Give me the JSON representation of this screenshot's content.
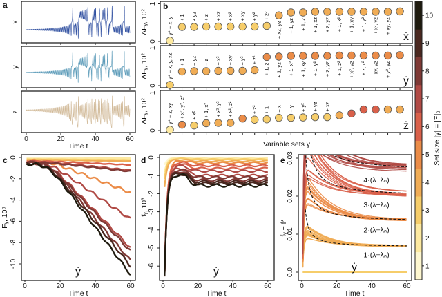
{
  "colors": {
    "set_size_scale": [
      "#fef7d0",
      "#fde9a0",
      "#f6cd6a",
      "#f0ac55",
      "#eb8c48",
      "#d9604a",
      "#b04a45",
      "#7e3935",
      "#4a2820",
      "#1e1a0e"
    ],
    "x_series": "#2f4fa0",
    "y_series": "#5a9ab8",
    "z_series": "#d2bb9a"
  },
  "chart_data": [
    {
      "panel": "a",
      "type": "line",
      "rows": [
        {
          "ylabel": "x"
        },
        {
          "ylabel": "y"
        },
        {
          "ylabel": "z"
        }
      ],
      "xlabel": "Time t",
      "xticks": [
        "0",
        "20",
        "40",
        "60"
      ],
      "xlim": [
        0,
        60
      ]
    },
    {
      "panel": "b",
      "type": "scatter",
      "ylabel": "ΔFᵧ, 10²",
      "yticks": [
        "0",
        "1"
      ],
      "ylim": [
        0,
        1
      ],
      "xlabel": "Variable sets γ",
      "rows": [
        {
          "target": "ẋ",
          "points": [
            {
              "label": "γ* = x, y",
              "set_size": 2,
              "value": 0.02
            },
            {
              "label": "+ 1",
              "set_size": 3,
              "value": 0.4
            },
            {
              "label": "+ yz",
              "set_size": 3,
              "value": 0.4
            },
            {
              "label": "+ z",
              "set_size": 3,
              "value": 0.41
            },
            {
              "label": "+ xz",
              "set_size": 3,
              "value": 0.41
            },
            {
              "label": "+ x²",
              "set_size": 3,
              "value": 0.41
            },
            {
              "label": "+ xy",
              "set_size": 3,
              "value": 0.41
            },
            {
              "label": "+ y²",
              "set_size": 3,
              "value": 0.41
            },
            {
              "label": "+ z²",
              "set_size": 3,
              "value": 0.43
            },
            {
              "label": "+ xz, yz",
              "set_size": 4,
              "value": 0.72
            },
            {
              "label": "+ 1, yz",
              "set_size": 4,
              "value": 0.8
            },
            {
              "label": "+ 1, z",
              "set_size": 4,
              "value": 0.8
            },
            {
              "label": "+ 1, xz",
              "set_size": 4,
              "value": 0.82
            },
            {
              "label": "+ z, yz",
              "set_size": 4,
              "value": 0.82
            },
            {
              "label": "+ 1, x²",
              "set_size": 4,
              "value": 0.82
            },
            {
              "label": "+ 1, xy",
              "set_size": 4,
              "value": 0.82
            },
            {
              "label": "+ 1, y²",
              "set_size": 4,
              "value": 0.82
            },
            {
              "label": "+ x², yz",
              "set_size": 4,
              "value": 0.82
            },
            {
              "label": "+ xy, yz",
              "set_size": 4,
              "value": 0.82
            },
            {
              "label": "",
              "set_size": 4,
              "value": 0.83
            }
          ]
        },
        {
          "target": "ẏ",
          "points": [
            {
              "label": "γ* = x, y, xz",
              "set_size": 3,
              "value": 0.02
            },
            {
              "label": "+ 1",
              "set_size": 4,
              "value": 0.39
            },
            {
              "label": "+ yz",
              "set_size": 4,
              "value": 0.4
            },
            {
              "label": "+ z",
              "set_size": 4,
              "value": 0.4
            },
            {
              "label": "+ x²",
              "set_size": 4,
              "value": 0.41
            },
            {
              "label": "+ xy",
              "set_size": 4,
              "value": 0.41
            },
            {
              "label": "+ y²",
              "set_size": 4,
              "value": 0.41
            },
            {
              "label": "+ z²",
              "set_size": 4,
              "value": 0.43
            },
            {
              "label": "+ 1, z",
              "set_size": 5,
              "value": 0.79
            },
            {
              "label": "+ 1, yz",
              "set_size": 5,
              "value": 0.8
            },
            {
              "label": "+ 1, x²",
              "set_size": 5,
              "value": 0.82
            },
            {
              "label": "+ 1, xy",
              "set_size": 5,
              "value": 0.82
            },
            {
              "label": "+ 1, y²",
              "set_size": 5,
              "value": 0.82
            },
            {
              "label": "+ z, yz",
              "set_size": 5,
              "value": 0.82
            },
            {
              "label": "+ 1, z²",
              "set_size": 5,
              "value": 0.83
            },
            {
              "label": "+ x², yz",
              "set_size": 5,
              "value": 0.83
            },
            {
              "label": "+ z, x²",
              "set_size": 5,
              "value": 0.83
            },
            {
              "label": "+ xy, yz",
              "set_size": 5,
              "value": 0.83
            },
            {
              "label": "+ y², yz",
              "set_size": 5,
              "value": 0.83
            },
            {
              "label": "",
              "set_size": 5,
              "value": 0.84
            }
          ]
        },
        {
          "target": "ż",
          "points": [
            {
              "label": "γ* = z, xy",
              "set_size": 2,
              "value": 0.02
            },
            {
              "label": "+ x², y², z²",
              "set_size": 5,
              "value": 0.16
            },
            {
              "label": "+ x²",
              "set_size": 3,
              "value": 0.14
            },
            {
              "label": "+ 1, x²",
              "set_size": 4,
              "value": 0.2
            },
            {
              "label": "+ x², y²",
              "set_size": 4,
              "value": 0.21
            },
            {
              "label": "+ x², z²",
              "set_size": 4,
              "value": 0.21
            },
            {
              "label": "",
              "set_size": 5,
              "value": 0.33
            },
            {
              "label": "+ z²",
              "set_size": 3,
              "value": 0.3
            },
            {
              "label": "+ 1",
              "set_size": 3,
              "value": 0.31
            },
            {
              "label": "+ x",
              "set_size": 3,
              "value": 0.35
            },
            {
              "label": "+ y",
              "set_size": 3,
              "value": 0.35
            },
            {
              "label": "+ y²",
              "set_size": 3,
              "value": 0.36
            },
            {
              "label": "+ yz",
              "set_size": 3,
              "value": 0.37
            },
            {
              "label": "+ xz",
              "set_size": 3,
              "value": 0.37
            },
            {
              "label": "",
              "set_size": 4,
              "value": 0.42
            },
            {
              "label": "",
              "set_size": 6,
              "value": 0.47
            },
            {
              "label": "",
              "set_size": 6,
              "value": 0.58
            },
            {
              "label": "",
              "set_size": 6,
              "value": 0.58
            },
            {
              "label": "",
              "set_size": 4,
              "value": 0.58
            },
            {
              "label": "",
              "set_size": 4,
              "value": 0.58
            }
          ]
        }
      ]
    },
    {
      "panel": "c",
      "type": "line",
      "ylabel": "Fᵧ, 10⁶",
      "yticks": [
        "0",
        "-2",
        "-4",
        "-6",
        "-8",
        "-10"
      ],
      "xticks": [
        "0",
        "20",
        "40",
        "60"
      ],
      "xlabel": "Time t",
      "xlim": [
        0,
        60
      ],
      "ylim": [
        -11.5,
        0.3
      ],
      "annotation": "ẏ",
      "curves": [
        {
          "set_size": 1,
          "end": -0.1
        },
        {
          "set_size": 2,
          "end": -0.15
        },
        {
          "set_size": 3,
          "end": -0.25
        },
        {
          "set_size": 4,
          "end": -0.35
        },
        {
          "set_size": 2,
          "end": -0.05
        },
        {
          "set_size": 6,
          "end": -0.7
        },
        {
          "set_size": 7,
          "end": -1.2
        },
        {
          "set_size": 8,
          "end": -1.3
        },
        {
          "set_size": 5,
          "end": -3.3
        },
        {
          "set_size": 7,
          "end": -5.8
        },
        {
          "set_size": 7,
          "end": -8.5
        },
        {
          "set_size": 8,
          "end": -8.8
        },
        {
          "set_size": 8,
          "end": -9.7
        },
        {
          "set_size": 9,
          "end": -10.2
        },
        {
          "set_size": 10,
          "end": -11.0
        }
      ]
    },
    {
      "panel": "d",
      "type": "line",
      "ylabel": "fᵧ, 10³",
      "yticks": [
        "0",
        "-1",
        "-2",
        "-3",
        "-4",
        "-5",
        "-6"
      ],
      "xticks": [
        "0",
        "20",
        "40",
        "60"
      ],
      "xlabel": "Time t",
      "xlim": [
        0,
        60
      ],
      "ylim": [
        -6.6,
        0.2
      ],
      "annotation": "ẏ",
      "curves": [
        {
          "set_size": 1,
          "end": -0.03
        },
        {
          "set_size": 2,
          "end": -0.06
        },
        {
          "set_size": 3,
          "end": -0.1
        },
        {
          "set_size": 4,
          "end": -0.2
        },
        {
          "set_size": 5,
          "end": -0.3
        },
        {
          "set_size": 6,
          "end": -0.45
        },
        {
          "set_size": 6,
          "end": -0.6
        },
        {
          "set_size": 7,
          "end": -0.75
        },
        {
          "set_size": 7,
          "end": -1.0
        },
        {
          "set_size": 8,
          "end": -1.1
        },
        {
          "set_size": 8,
          "end": -1.25
        },
        {
          "set_size": 9,
          "end": -1.35
        },
        {
          "set_size": 9,
          "end": -1.45
        },
        {
          "set_size": 10,
          "end": -1.55
        }
      ]
    },
    {
      "panel": "e",
      "type": "line",
      "ylabel": "fᵧ − f*",
      "yticks": [
        "0.0",
        "0.01",
        "0.02",
        "0.03"
      ],
      "xticks": [
        "0",
        "20",
        "40",
        "60"
      ],
      "xlabel": "Time t",
      "xlim": [
        0,
        60
      ],
      "ylim": [
        -0.0015,
        0.031
      ],
      "annotation": "ẏ",
      "baseline": {
        "set_size": 3,
        "value": 0.0
      },
      "bands": [
        {
          "multiple": 1,
          "label": "1·(λ+λₙ)",
          "set_size": 4,
          "asymptote": 0.0066
        },
        {
          "multiple": 2,
          "label": "2·(λ+λₙ)",
          "set_size": 5,
          "asymptote": 0.0132
        },
        {
          "multiple": 3,
          "label": "3·(λ+λₙ)",
          "set_size": 6,
          "asymptote": 0.0198
        },
        {
          "multiple": 4,
          "label": "4·(λ+λₙ)",
          "set_size": 7,
          "asymptote": 0.0264
        }
      ]
    }
  ],
  "colorbar": {
    "label": "Set size |γ| = |Ξ|₀",
    "ticks": [
      "1",
      "2",
      "3",
      "4",
      "5",
      "6",
      "7",
      "8",
      "9",
      "10"
    ]
  },
  "panel_letters": [
    "a",
    "b",
    "c",
    "d",
    "e"
  ]
}
